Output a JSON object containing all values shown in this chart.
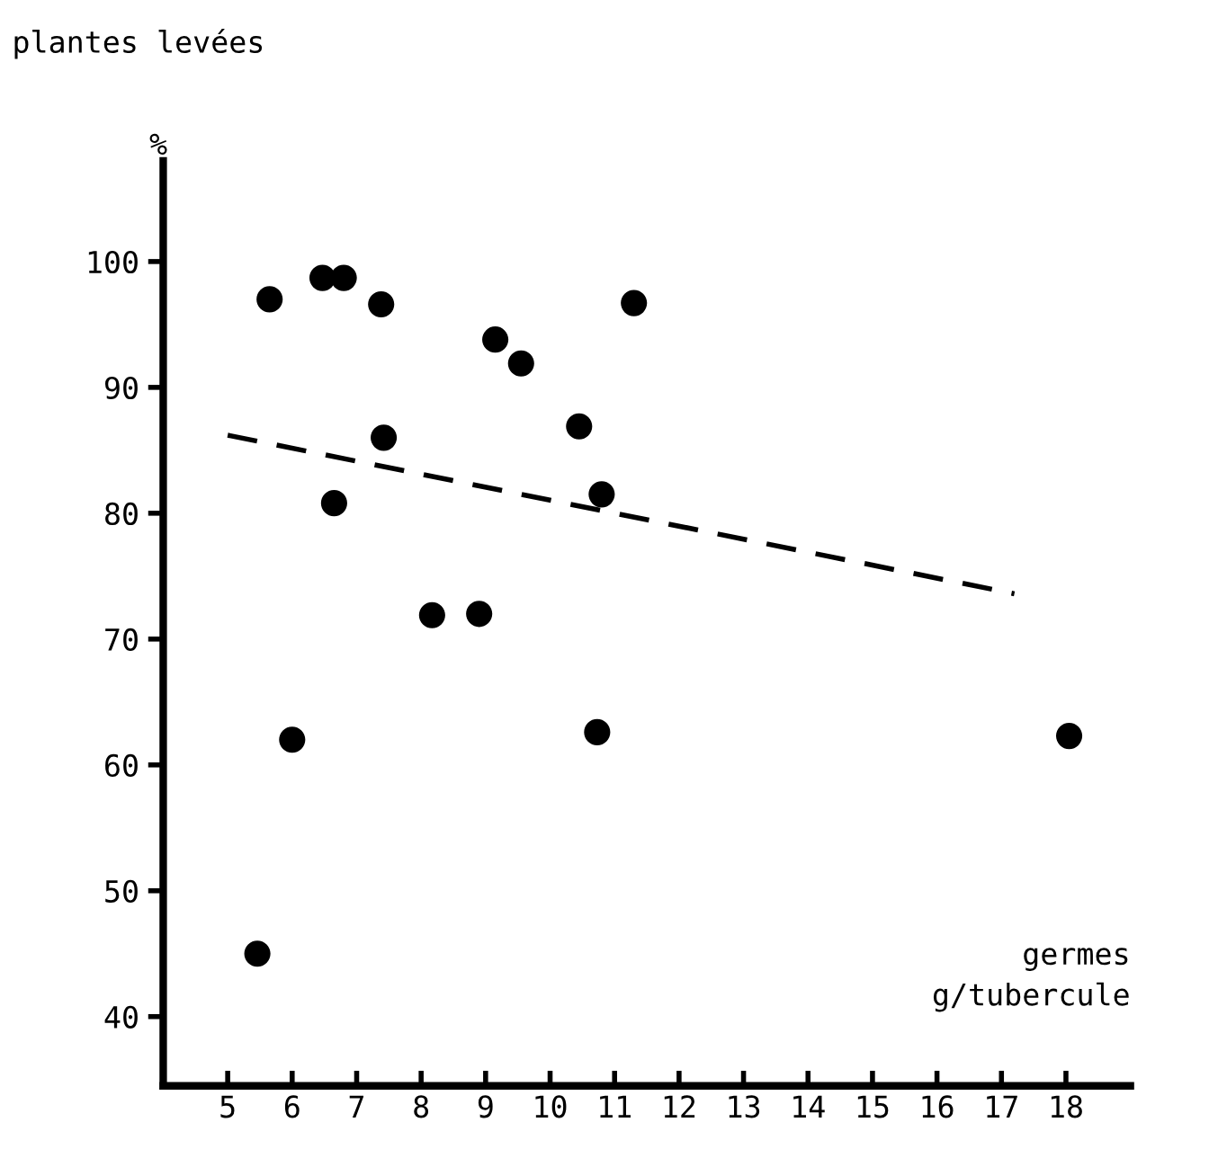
{
  "chart_data": {
    "type": "scatter",
    "ylabel": "plantes levées",
    "xlabel": "germes\ng/tubercule",
    "annotations": [
      "%"
    ],
    "xlim": [
      4.0,
      19.0
    ],
    "ylim": [
      34.5,
      108
    ],
    "xticks": [
      5,
      6,
      7,
      8,
      9,
      10,
      11,
      12,
      13,
      14,
      15,
      16,
      17,
      18
    ],
    "yticks": [
      40,
      50,
      60,
      70,
      80,
      90,
      100
    ],
    "grid": false,
    "series": [
      {
        "marker": "circle",
        "color": "#000000",
        "x": [
          5.65,
          6.47,
          6.8,
          7.38,
          9.15,
          9.55,
          11.3,
          7.42,
          10.45,
          6.65,
          10.8,
          8.17,
          8.9,
          6.0,
          5.46,
          10.73,
          18.05
        ],
        "values": [
          97,
          98.7,
          98.7,
          96.6,
          93.8,
          91.9,
          96.7,
          86.0,
          86.9,
          80.8,
          81.5,
          71.9,
          72.0,
          62.0,
          45,
          62.6,
          62.3
        ]
      },
      {
        "type": "line",
        "color": "#000000",
        "line_style": "dashed",
        "x": [
          5.0,
          17.2
        ],
        "values": [
          86.2,
          73.6
        ]
      }
    ]
  }
}
